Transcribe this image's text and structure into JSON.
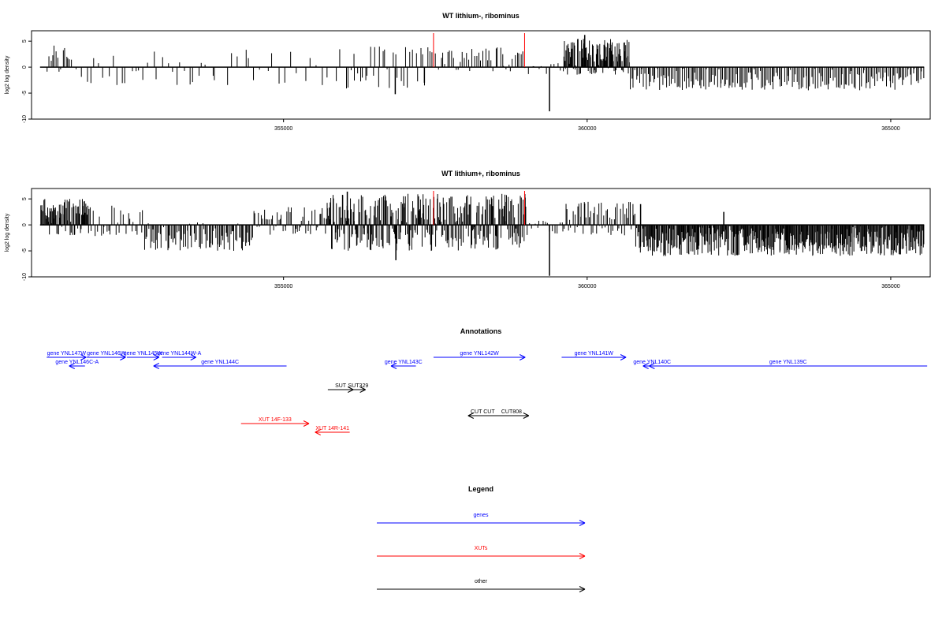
{
  "chart_data": [
    {
      "type": "bar",
      "title": "WT lithium-, ribominus",
      "ylabel": "log2 log density",
      "xlim": [
        350850,
        365650
      ],
      "ylim": [
        -10,
        7
      ],
      "yticks": [
        -10,
        -5,
        0,
        5
      ],
      "xticks": [
        355000,
        360000,
        365000
      ],
      "baseline": {
        "from": 350990,
        "to": 365550
      },
      "marker_color": "#ff0000",
      "bar_color": "#000000",
      "markers": [
        357470,
        358970
      ],
      "regions": [
        {
          "from": 351100,
          "to": 351500,
          "n": 14,
          "lo": -1.5,
          "hi": 4.5
        },
        {
          "from": 351500,
          "to": 354000,
          "n": 34,
          "lo": -3.5,
          "hi": 3.0
        },
        {
          "from": 354000,
          "to": 356000,
          "n": 20,
          "lo": -3.5,
          "hi": 3.5
        },
        {
          "from": 356000,
          "to": 357400,
          "n": 34,
          "lo": -4.5,
          "hi": 4.0
        },
        {
          "from": 357400,
          "to": 359000,
          "n": 46,
          "lo": -0.8,
          "hi": 4.0
        },
        {
          "from": 359000,
          "to": 359600,
          "n": 10,
          "lo": -1.5,
          "hi": 0.8
        },
        {
          "from": 359600,
          "to": 360700,
          "n": 110,
          "lo": -1.5,
          "hi": 5.5
        },
        {
          "from": 360700,
          "to": 365550,
          "n": 200,
          "lo": -4.5,
          "hi": 0.0
        }
      ],
      "spikes": [
        {
          "x": 356840,
          "y": -5.2
        },
        {
          "x": 359380,
          "y": -8.5
        },
        {
          "x": 359960,
          "y": 6.2
        },
        {
          "x": 357320,
          "y": -3.0
        }
      ]
    },
    {
      "type": "bar",
      "title": "WT lithium+, ribominus",
      "ylabel": "log2 log density",
      "xlim": [
        350850,
        365650
      ],
      "ylim": [
        -10,
        7
      ],
      "yticks": [
        -10,
        -5,
        0,
        5
      ],
      "xticks": [
        355000,
        360000,
        365000
      ],
      "baseline": {
        "from": 350990,
        "to": 365550
      },
      "marker_color": "#ff0000",
      "bar_color": "#000000",
      "markers": [
        357470,
        358970
      ],
      "regions": [
        {
          "from": 351000,
          "to": 351800,
          "n": 80,
          "lo": -2.0,
          "hi": 5.0
        },
        {
          "from": 351800,
          "to": 352700,
          "n": 30,
          "lo": -2.5,
          "hi": 4.0
        },
        {
          "from": 352700,
          "to": 354500,
          "n": 90,
          "lo": -5.0,
          "hi": 0.5
        },
        {
          "from": 354500,
          "to": 355700,
          "n": 50,
          "lo": -2.0,
          "hi": 3.5
        },
        {
          "from": 355700,
          "to": 359000,
          "n": 300,
          "lo": -5.0,
          "hi": 6.0
        },
        {
          "from": 359000,
          "to": 359600,
          "n": 15,
          "lo": -2.5,
          "hi": 1.0
        },
        {
          "from": 359600,
          "to": 360800,
          "n": 60,
          "lo": -2.0,
          "hi": 4.5
        },
        {
          "from": 360800,
          "to": 365550,
          "n": 420,
          "lo": -6.0,
          "hi": 0.0
        }
      ],
      "spikes": [
        {
          "x": 356850,
          "y": -6.8
        },
        {
          "x": 359380,
          "y": -9.8
        },
        {
          "x": 356050,
          "y": 6.4
        },
        {
          "x": 362250,
          "y": 2.5
        },
        {
          "x": 360880,
          "y": 4.0
        }
      ]
    }
  ],
  "annotations": {
    "title": "Annotations",
    "xlim": [
      350850,
      365650
    ],
    "features": [
      {
        "label": "gene YNL147W",
        "color": "#0000ff",
        "start": 351100,
        "end": 351750,
        "dir": "+",
        "row": 0
      },
      {
        "label": "gene YNL146W",
        "color": "#0000ff",
        "start": 351760,
        "end": 352400,
        "dir": "+",
        "row": 0
      },
      {
        "label": "gene YNL145W",
        "color": "#0000ff",
        "start": 352420,
        "end": 352950,
        "dir": "+",
        "row": 0
      },
      {
        "label": "gene YNL144W-A",
        "color": "#0000ff",
        "start": 353000,
        "end": 353560,
        "dir": "+",
        "row": 0
      },
      {
        "label": "gene YNL146C-A",
        "color": "#0000ff",
        "start": 351470,
        "end": 351730,
        "dir": "-",
        "row": 1
      },
      {
        "label": "gene YNL144C",
        "color": "#0000ff",
        "start": 352860,
        "end": 355050,
        "dir": "-",
        "row": 1
      },
      {
        "label": "gene YNL143C",
        "color": "#0000ff",
        "start": 356770,
        "end": 357180,
        "dir": "-",
        "row": 1
      },
      {
        "label": "gene YNL142W",
        "color": "#0000ff",
        "start": 357470,
        "end": 358980,
        "dir": "+",
        "row": 0
      },
      {
        "label": "gene YNL141W",
        "color": "#0000ff",
        "start": 359580,
        "end": 360640,
        "dir": "+",
        "row": 0
      },
      {
        "label": "gene YNL140C",
        "color": "#0000ff",
        "start": 360920,
        "end": 361220,
        "dir": "-",
        "row": 1
      },
      {
        "label": "gene YNL139C",
        "color": "#0000ff",
        "start": 361020,
        "end": 365600,
        "dir": "-",
        "row": 1
      },
      {
        "label": "SUT",
        "color": "#000000",
        "start": 355730,
        "end": 356150,
        "dir": "+",
        "row": 2
      },
      {
        "label": "SUT329",
        "color": "#000000",
        "start": 356110,
        "end": 356350,
        "dir": "+",
        "row": 2
      },
      {
        "label": "CUT CUT",
        "color": "#000000",
        "start": 358040,
        "end": 358520,
        "dir": "-",
        "row": 3
      },
      {
        "label": "CUT808",
        "color": "#000000",
        "start": 358470,
        "end": 359040,
        "dir": "+",
        "row": 3
      },
      {
        "label": "XUT 14F-133",
        "color": "#ff0000",
        "start": 354300,
        "end": 355420,
        "dir": "+",
        "row": 4
      },
      {
        "label": "XUT 14R-141",
        "color": "#ff0000",
        "start": 355520,
        "end": 356090,
        "dir": "-",
        "row": 5
      }
    ]
  },
  "legend": {
    "title": "Legend",
    "items": [
      {
        "label": "genes",
        "color": "#0000ff"
      },
      {
        "label": "XUTs",
        "color": "#ff0000"
      },
      {
        "label": "other",
        "color": "#000000"
      }
    ]
  }
}
